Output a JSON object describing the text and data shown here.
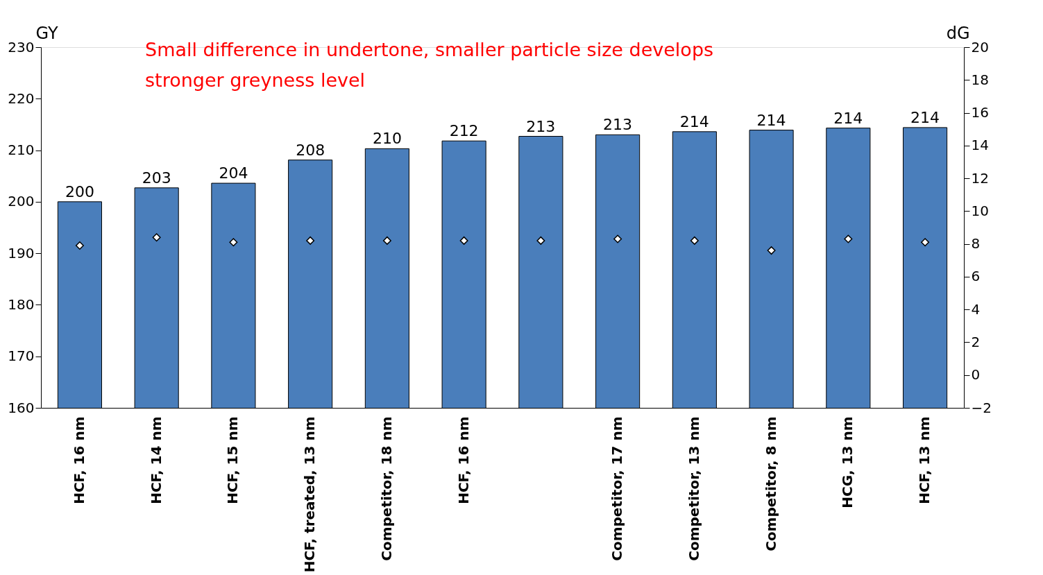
{
  "chart_data": {
    "type": "bar",
    "annotations": [
      "Small difference in undertone, smaller particle size develops stronger greyness level"
    ],
    "ylabel": "GY",
    "y2label": "dG",
    "categories": [
      "HCF, 16 nm",
      "HCF, 14 nm",
      "HCF, 15 nm",
      "HCF, treated, 13 nm",
      "Competitor,  18 nm",
      "HCF, 16 nm",
      null,
      "Competitor, 17 nm",
      "Competitor, 13 nm",
      "Competitor, 8 nm",
      "HCG, 13 nm",
      "HCF, 13 nm"
    ],
    "series": [
      {
        "color": "#4a7ebb",
        "values": [
          200,
          202.7,
          203.6,
          208.1,
          210.3,
          211.8,
          212.7,
          213,
          213.6,
          213.9,
          214.3,
          214.4
        ],
        "value_labels": [
          "200",
          "203",
          "204",
          "208",
          "210",
          "212",
          "213",
          "213",
          "214",
          "214",
          "214",
          "214"
        ]
      },
      {
        "type": "scatter",
        "axis": "y2",
        "marker": "diamond",
        "color": "#ffffff",
        "values": [
          7.9,
          8.4,
          8.1,
          8.2,
          8.2,
          8.2,
          8.2,
          8.3,
          8.2,
          7.6,
          8.3,
          8.1
        ]
      }
    ],
    "ylim": [
      160,
      230
    ],
    "yticks": [
      160,
      170,
      180,
      190,
      200,
      210,
      220,
      230
    ],
    "y2lim": [
      -2,
      20
    ],
    "y2ticks": [
      -2,
      0,
      2,
      4,
      6,
      8,
      10,
      12,
      14,
      16,
      18,
      20
    ],
    "grid": false
  }
}
